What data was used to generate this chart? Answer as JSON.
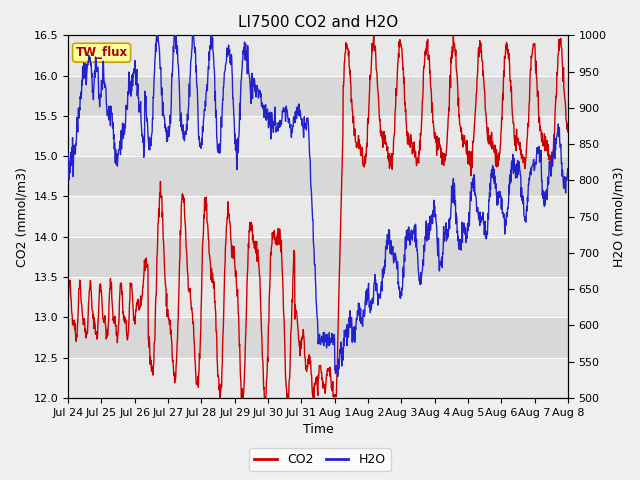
{
  "title": "LI7500 CO2 and H2O",
  "xlabel": "Time",
  "ylabel_left": "CO2 (mmol/m3)",
  "ylabel_right": "H2O (mmol/m3)",
  "ylim_left": [
    12.0,
    16.5
  ],
  "ylim_right": [
    500,
    1000
  ],
  "yticks_left": [
    12.0,
    12.5,
    13.0,
    13.5,
    14.0,
    14.5,
    15.0,
    15.5,
    16.0,
    16.5
  ],
  "yticks_right": [
    500,
    550,
    600,
    650,
    700,
    750,
    800,
    850,
    900,
    950,
    1000
  ],
  "xtick_labels": [
    "Jul 24",
    "Jul 25",
    "Jul 26",
    "Jul 27",
    "Jul 28",
    "Jul 29",
    "Jul 30",
    "Jul 31",
    "Aug 1",
    "Aug 2",
    "Aug 3",
    "Aug 4",
    "Aug 5",
    "Aug 6",
    "Aug 7",
    "Aug 8"
  ],
  "legend_entries": [
    "CO2",
    "H2O"
  ],
  "co2_color": "#cc0000",
  "h2o_color": "#2222cc",
  "fig_facecolor": "#f0f0f0",
  "plot_facecolor": "#e0e0e0",
  "stripe_light": "#e8e8e8",
  "stripe_dark": "#d8d8d8",
  "annotation_text": "TW_flux",
  "annotation_facecolor": "#ffffa0",
  "annotation_edgecolor": "#c8a000",
  "annotation_textcolor": "#aa0000",
  "grid_color": "#ffffff",
  "title_fontsize": 11,
  "axis_label_fontsize": 9,
  "tick_fontsize": 8,
  "legend_fontsize": 9
}
